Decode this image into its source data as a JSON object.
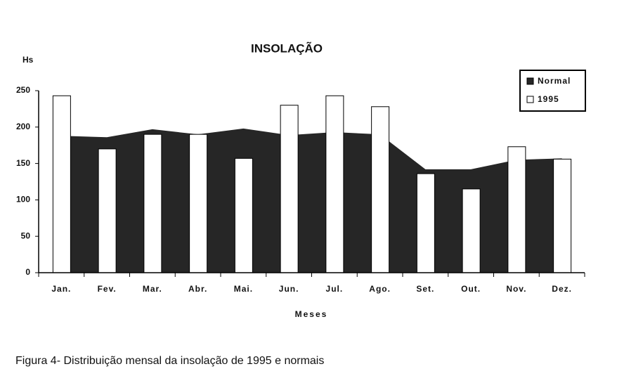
{
  "chart_data": {
    "type": "bar",
    "title": "INSOLAÇÃO",
    "y_label": "Hs",
    "x_label": "Meses",
    "caption": "Figura 4- Distribuição mensal da insolação de 1995 e normais",
    "categories": [
      "Jan.",
      "Fev.",
      "Mar.",
      "Abr.",
      "Mai.",
      "Jun.",
      "Jul.",
      "Ago.",
      "Set.",
      "Out.",
      "Nov.",
      "Dez."
    ],
    "series": [
      {
        "name": "Normal",
        "type": "area",
        "color": "#262626",
        "values": [
          188,
          186,
          197,
          190,
          198,
          189,
          193,
          190,
          142,
          142,
          155,
          157
        ]
      },
      {
        "name": "1995",
        "type": "bar",
        "color": "#ffffff",
        "values": [
          243,
          170,
          190,
          190,
          157,
          230,
          243,
          228,
          136,
          115,
          173,
          156
        ]
      }
    ],
    "ylim": [
      0,
      250
    ],
    "yticks": [
      0,
      50,
      100,
      150,
      200,
      250
    ],
    "legend": "upper right"
  }
}
